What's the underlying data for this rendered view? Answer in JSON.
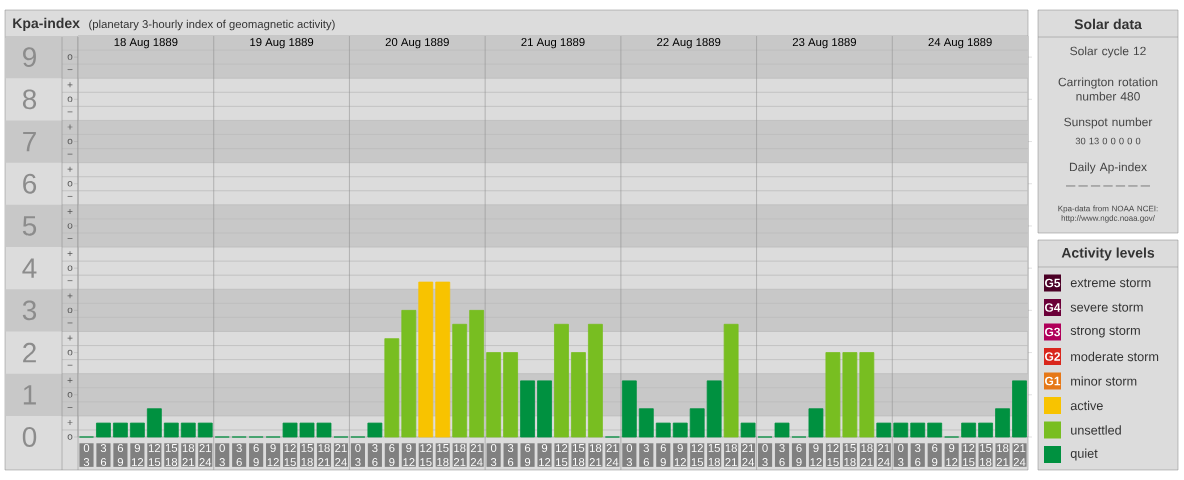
{
  "chart_data": [
    {
      "type": "bar",
      "title": "Kpa-index",
      "subtitle": "(planetary 3-hourly index of geomagnetic activity)",
      "categories": [
        "0 3",
        "3 6",
        "6 9",
        "9 12",
        "12 15",
        "15 18",
        "18 21",
        "21 24",
        "0 3",
        "3 6",
        "6 9",
        "9 12",
        "12 15",
        "15 18",
        "18 21",
        "21 24",
        "0 3",
        "3 6",
        "6 9",
        "9 12",
        "12 15",
        "15 18",
        "18 21",
        "21 24",
        "0 3",
        "3 6",
        "6 9",
        "9 12",
        "12 15",
        "15 18",
        "18 21",
        "21 24",
        "0 3",
        "3 6",
        "6 9",
        "9 12",
        "12 15",
        "15 18",
        "18 21",
        "21 24",
        "0 3",
        "3 6",
        "6 9",
        "9 12",
        "12 15",
        "15 18",
        "18 21",
        "21 24",
        "0 3",
        "3 6",
        "6 9",
        "9 12",
        "12 15",
        "15 18",
        "18 21",
        "21 24"
      ],
      "series": [
        {
          "name": "extreme storm",
          "color": "#4b0026",
          "values": [
            null,
            null,
            null,
            null,
            null,
            null,
            null,
            null,
            null,
            null,
            null,
            null,
            null,
            null,
            null,
            null,
            null,
            null,
            null,
            null,
            null,
            null,
            null,
            null,
            null,
            null,
            null,
            null,
            null,
            null,
            null,
            null,
            null,
            null,
            null,
            null,
            null,
            null,
            null,
            null,
            null,
            null,
            null,
            null,
            null,
            null,
            null,
            null,
            null,
            null,
            null,
            null,
            null,
            null,
            null,
            null
          ]
        },
        {
          "name": "severe storm",
          "color": "#6b0039",
          "values": [
            null,
            null,
            null,
            null,
            null,
            null,
            null,
            null,
            null,
            null,
            null,
            null,
            null,
            null,
            null,
            null,
            null,
            null,
            null,
            null,
            null,
            null,
            null,
            null,
            null,
            null,
            null,
            null,
            null,
            null,
            null,
            null,
            null,
            null,
            null,
            null,
            null,
            null,
            null,
            null,
            null,
            null,
            null,
            null,
            null,
            null,
            null,
            null,
            null,
            null,
            null,
            null,
            null,
            null,
            null,
            null
          ]
        },
        {
          "name": "strong storm",
          "color": "#b0005a",
          "values": [
            null,
            null,
            null,
            null,
            null,
            null,
            null,
            null,
            null,
            null,
            null,
            null,
            null,
            null,
            null,
            null,
            null,
            null,
            null,
            null,
            null,
            null,
            null,
            null,
            null,
            null,
            null,
            null,
            null,
            null,
            null,
            null,
            null,
            null,
            null,
            null,
            null,
            null,
            null,
            null,
            null,
            null,
            null,
            null,
            null,
            null,
            null,
            null,
            null,
            null,
            null,
            null,
            null,
            null,
            null,
            null
          ]
        },
        {
          "name": "moderate storm",
          "color": "#d9261c",
          "values": [
            null,
            null,
            null,
            null,
            null,
            null,
            null,
            null,
            null,
            null,
            null,
            null,
            null,
            null,
            null,
            null,
            null,
            null,
            null,
            null,
            null,
            null,
            null,
            null,
            null,
            null,
            null,
            null,
            null,
            null,
            null,
            null,
            null,
            null,
            null,
            null,
            null,
            null,
            null,
            null,
            null,
            null,
            null,
            null,
            null,
            null,
            null,
            null,
            null,
            null,
            null,
            null,
            null,
            null,
            null,
            null
          ]
        },
        {
          "name": "minor storm",
          "color": "#e67817",
          "values": [
            null,
            null,
            null,
            null,
            null,
            null,
            null,
            null,
            null,
            null,
            null,
            null,
            null,
            null,
            null,
            null,
            null,
            null,
            null,
            null,
            null,
            null,
            null,
            null,
            null,
            null,
            null,
            null,
            null,
            null,
            null,
            null,
            null,
            null,
            null,
            null,
            null,
            null,
            null,
            null,
            null,
            null,
            null,
            null,
            null,
            null,
            null,
            null,
            null,
            null,
            null,
            null,
            null,
            null,
            null,
            null
          ]
        },
        {
          "name": "active",
          "color": "#f8c300",
          "values": [
            null,
            null,
            null,
            null,
            null,
            null,
            null,
            null,
            null,
            null,
            null,
            null,
            null,
            null,
            null,
            null,
            null,
            null,
            null,
            null,
            3.67,
            3.67,
            null,
            null,
            null,
            null,
            null,
            null,
            null,
            null,
            null,
            null,
            null,
            null,
            null,
            null,
            null,
            null,
            null,
            null,
            null,
            null,
            null,
            null,
            null,
            null,
            null,
            null,
            null,
            null,
            null,
            null,
            null,
            null,
            null,
            null
          ]
        },
        {
          "name": "unsettled",
          "color": "#78be21",
          "values": [
            null,
            null,
            null,
            null,
            null,
            null,
            null,
            null,
            null,
            null,
            null,
            null,
            null,
            null,
            null,
            null,
            null,
            null,
            2.33,
            3,
            null,
            null,
            2.67,
            3,
            2,
            2,
            null,
            null,
            2.67,
            2,
            2.67,
            null,
            null,
            null,
            null,
            null,
            null,
            null,
            2.67,
            null,
            null,
            null,
            null,
            null,
            2,
            2,
            2,
            null,
            null,
            null,
            null,
            null,
            null,
            null,
            null,
            null
          ]
        },
        {
          "name": "quiet",
          "color": "#009140",
          "values": [
            0,
            0.33,
            0.33,
            0.33,
            0.67,
            0.33,
            0.33,
            0.33,
            0,
            0,
            0,
            0,
            0.33,
            0.33,
            0.33,
            0,
            0,
            0.33,
            null,
            null,
            null,
            null,
            null,
            null,
            null,
            null,
            1.33,
            1.33,
            null,
            null,
            null,
            0,
            1.33,
            0.67,
            0.33,
            0.33,
            0.67,
            1.33,
            null,
            0.33,
            0,
            0.33,
            0,
            0.67,
            null,
            null,
            null,
            0.33,
            0.33,
            0.33,
            0.33,
            0,
            0.33,
            0.33,
            0.67,
            1.33
          ]
        }
      ],
      "ylim": [
        0,
        9.5
      ],
      "yticks": [
        0,
        1,
        2,
        3,
        4,
        5,
        6,
        7,
        8,
        9
      ],
      "bands": [
        {
          "axis": "y",
          "from": 0.5,
          "to": 1.5,
          "color": "#c8c8c8"
        },
        {
          "axis": "y",
          "from": 2.5,
          "to": 3.5,
          "color": "#c8c8c8"
        },
        {
          "axis": "y",
          "from": 4.5,
          "to": 5.5,
          "color": "#c8c8c8"
        },
        {
          "axis": "y",
          "from": 6.5,
          "to": 7.5,
          "color": "#c8c8c8"
        },
        {
          "axis": "y",
          "from": 8.5,
          "to": 9.5,
          "color": "#c8c8c8"
        }
      ],
      "grid": "y",
      "legend": "right",
      "legend_title": "Activity levels",
      "annotations": [
        "18 Aug 1889",
        "19 Aug 1889",
        "20 Aug 1889",
        "21 Aug 1889",
        "22 Aug 1889",
        "23 Aug 1889",
        "24 Aug 1889",
        "o",
        "+",
        "−",
        "o",
        "+",
        "−",
        "o",
        "+",
        "−",
        "o",
        "+",
        "−",
        "o",
        "+",
        "−",
        "o",
        "+",
        "−",
        "o",
        "+",
        "−",
        "o",
        "+",
        "−",
        "o",
        "+",
        "−",
        "o",
        "G5",
        "G4",
        "G3",
        "G2",
        "G1"
      ]
    },
    {
      "type": "other",
      "title": "Solar data",
      "annotations": [
        "Solar cycle 12",
        "Carrington rotation number 480",
        "Sunspot number",
        "30 13 0 0 0 0 0",
        "Daily Ap-index",
        "— — — — — — —",
        "Kpa-data from NOAA NCEI: http://www.ngdc.noaa.gov/"
      ]
    }
  ]
}
